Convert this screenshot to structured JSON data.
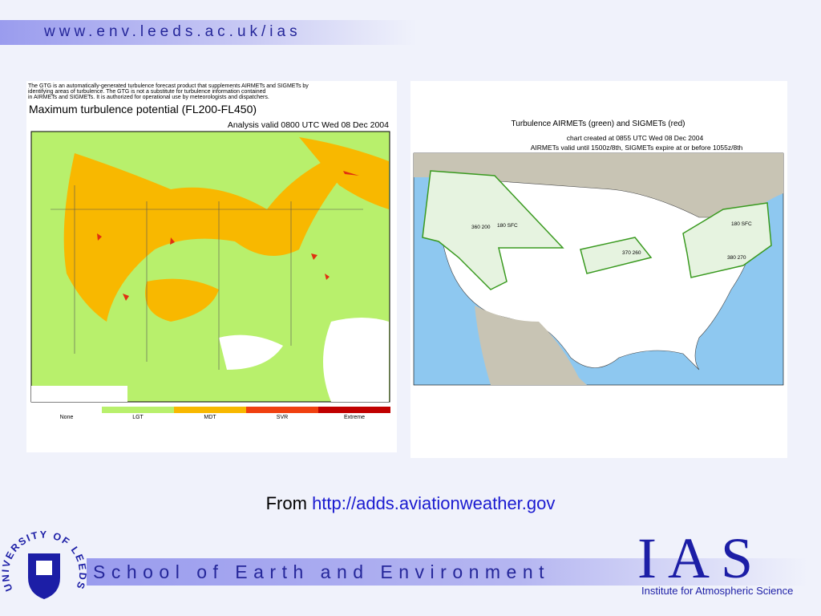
{
  "header": {
    "url": "www.env.leeds.ac.uk/ias"
  },
  "left_map": {
    "intro": [
      "The GTG is an automatically-generated turbulence forecast product that supplements AIRMETs and SIGMETs by",
      "identifying areas of turbulence.  The GTG is not a substitute for turbulence information contained",
      "in AIRMETs and SIGMETs.  It is authorized for operational use by meteorologists and dispatchers."
    ],
    "title": "Maximum turbulence potential (FL200-FL450)",
    "valid": "Analysis valid 0800 UTC Wed 08 Dec 2004",
    "legend": [
      "None",
      "LGT",
      "MDT",
      "SVR",
      "Extreme"
    ]
  },
  "right_map": {
    "title": "Turbulence AIRMETs (green) and SIGMETs (red)",
    "created": "chart created at 0855 UTC Wed 08 Dec 2004",
    "valid": "AIRMETs valid until 1500z/8th, SIGMETs expire at or before 1055z/8th",
    "labels": [
      "360 200",
      "180 SFC",
      "370 260",
      "180 SFC",
      "380 270"
    ]
  },
  "caption": {
    "prefix": "From",
    "link": "http://adds.aviationweather.gov"
  },
  "footer": {
    "school": "School of Earth and Environment",
    "ias": "IAS",
    "institute": "Institute for Atmospheric Science",
    "logo": "UNIVERSITY OF LEEDS"
  }
}
